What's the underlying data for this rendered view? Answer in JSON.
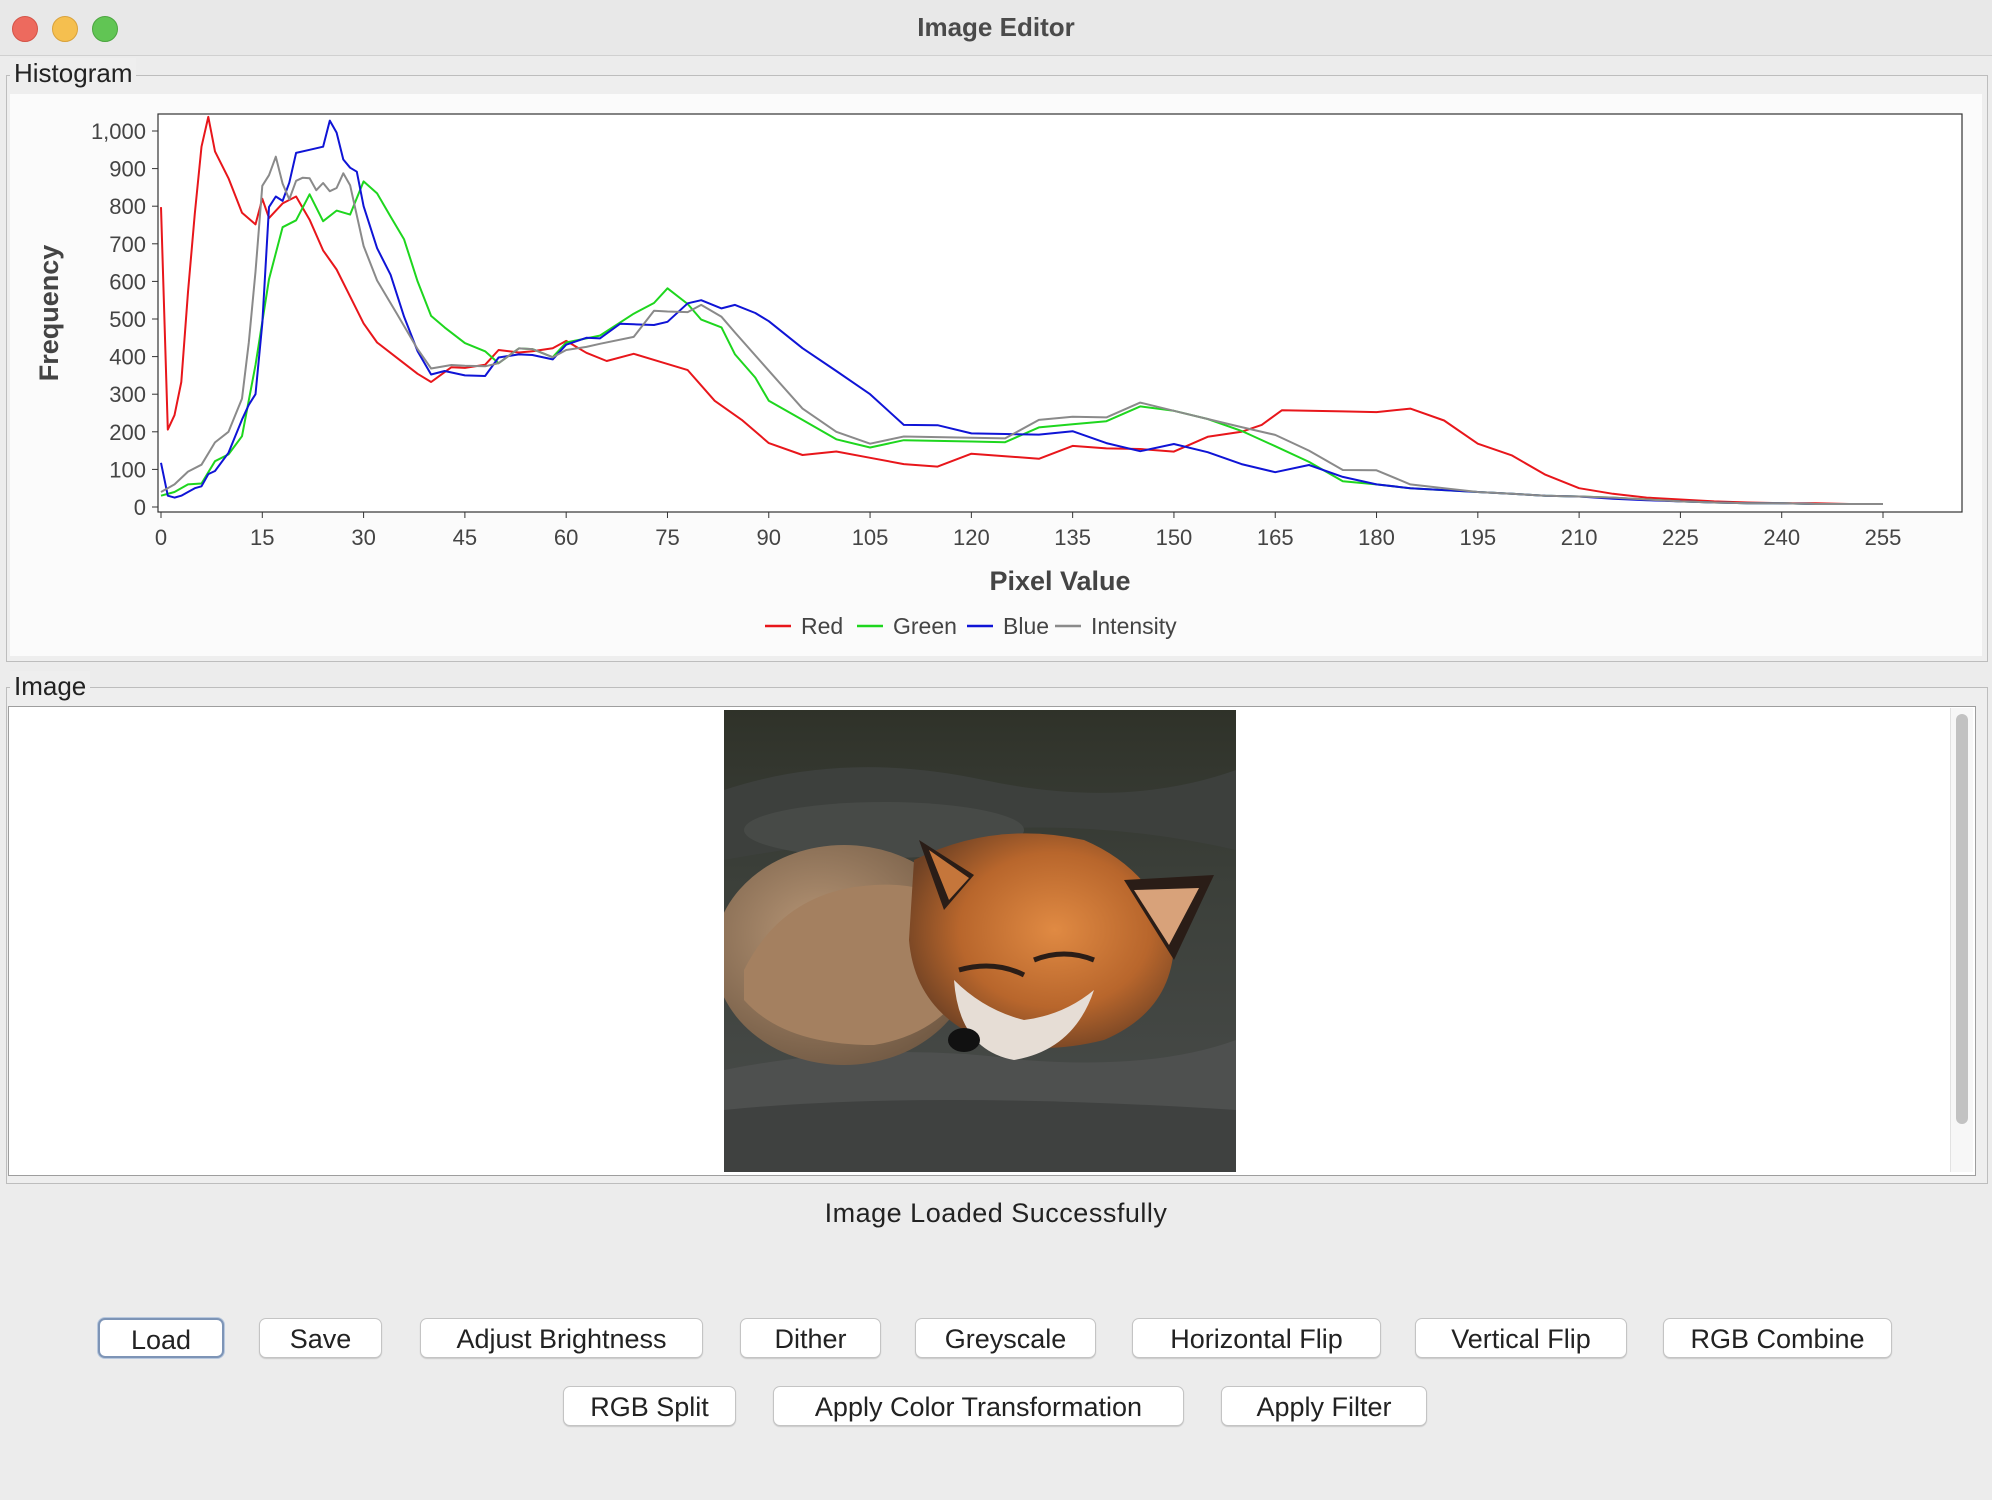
{
  "window": {
    "title": "Image Editor"
  },
  "histogram_panel": {
    "label": "Histogram"
  },
  "image_panel": {
    "label": "Image"
  },
  "status": "Image Loaded Successfully",
  "buttons": {
    "load": "Load",
    "save": "Save",
    "adjust_brightness": "Adjust Brightness",
    "dither": "Dither",
    "greyscale": "Greyscale",
    "horizontal_flip": "Horizontal Flip",
    "vertical_flip": "Vertical Flip",
    "rgb_combine": "RGB Combine",
    "rgb_split": "RGB Split",
    "apply_color_transformation": "Apply Color Transformation",
    "apply_filter": "Apply Filter"
  },
  "chart_data": {
    "type": "line",
    "title": "",
    "xlabel": "Pixel Value",
    "ylabel": "Frequency",
    "xlim": [
      0,
      268
    ],
    "ylim": [
      0,
      1080
    ],
    "x_ticks": [
      0,
      15,
      30,
      45,
      60,
      75,
      90,
      105,
      120,
      135,
      150,
      165,
      180,
      195,
      210,
      225,
      240,
      255
    ],
    "y_ticks": [
      0,
      100,
      200,
      300,
      400,
      500,
      600,
      700,
      800,
      900,
      1000
    ],
    "y_tick_labels": [
      "0",
      "100",
      "200",
      "300",
      "400",
      "500",
      "600",
      "700",
      "800",
      "900",
      "1,000"
    ],
    "grid": false,
    "legend_position": "bottom-center",
    "series": [
      {
        "name": "Red",
        "color": "#e8161b",
        "x": [
          0,
          1,
          2,
          3,
          4,
          5,
          6,
          7,
          8,
          10,
          12,
          14,
          15,
          16,
          18,
          20,
          22,
          24,
          26,
          28,
          30,
          32,
          35,
          38,
          40,
          43,
          45,
          48,
          50,
          53,
          55,
          58,
          60,
          63,
          66,
          70,
          74,
          78,
          82,
          86,
          90,
          95,
          100,
          105,
          110,
          115,
          120,
          125,
          130,
          135,
          140,
          145,
          150,
          155,
          160,
          163,
          166,
          170,
          175,
          180,
          185,
          190,
          195,
          200,
          205,
          210,
          215,
          220,
          225,
          230,
          235,
          240,
          245,
          250,
          255
        ],
        "y": [
          780,
          200,
          250,
          350,
          560,
          780,
          970,
          1020,
          940,
          880,
          800,
          740,
          820,
          780,
          790,
          820,
          770,
          700,
          620,
          560,
          500,
          420,
          390,
          360,
          350,
          360,
          370,
          390,
          400,
          405,
          420,
          440,
          430,
          410,
          400,
          390,
          380,
          370,
          300,
          220,
          170,
          150,
          130,
          125,
          120,
          125,
          130,
          135,
          140,
          145,
          150,
          160,
          165,
          175,
          200,
          230,
          240,
          250,
          260,
          270,
          250,
          230,
          180,
          120,
          80,
          50,
          35,
          25,
          20,
          15,
          12,
          10,
          10,
          8,
          8
        ]
      },
      {
        "name": "Green",
        "color": "#1ed61e",
        "x": [
          0,
          2,
          4,
          6,
          8,
          10,
          12,
          14,
          16,
          18,
          20,
          22,
          24,
          26,
          28,
          30,
          32,
          34,
          36,
          38,
          40,
          42,
          45,
          48,
          50,
          53,
          55,
          58,
          60,
          65,
          70,
          73,
          75,
          78,
          80,
          83,
          85,
          88,
          90,
          95,
          100,
          105,
          110,
          115,
          120,
          125,
          130,
          135,
          140,
          145,
          150,
          155,
          160,
          165,
          170,
          175,
          180,
          185,
          190,
          195,
          200,
          205,
          210,
          215,
          220,
          225,
          230,
          235,
          240,
          245,
          250,
          255
        ],
        "y": [
          30,
          40,
          60,
          80,
          110,
          140,
          200,
          360,
          600,
          750,
          780,
          820,
          760,
          800,
          760,
          860,
          840,
          790,
          700,
          600,
          520,
          460,
          430,
          420,
          400,
          410,
          420,
          410,
          420,
          450,
          520,
          560,
          570,
          540,
          510,
          460,
          400,
          350,
          300,
          220,
          180,
          170,
          160,
          170,
          180,
          190,
          200,
          220,
          240,
          250,
          250,
          240,
          220,
          150,
          120,
          80,
          60,
          50,
          45,
          40,
          35,
          30,
          28,
          25,
          20,
          15,
          12,
          10,
          10,
          8,
          8,
          8
        ]
      },
      {
        "name": "Blue",
        "color": "#0f14d6",
        "x": [
          0,
          1,
          2,
          3,
          4,
          5,
          6,
          7,
          8,
          10,
          12,
          13,
          14,
          15,
          16,
          17,
          18,
          19,
          20,
          22,
          24,
          25,
          26,
          27,
          28,
          29,
          30,
          32,
          34,
          36,
          38,
          40,
          42,
          45,
          48,
          50,
          53,
          55,
          58,
          60,
          63,
          65,
          68,
          70,
          73,
          75,
          78,
          80,
          83,
          85,
          88,
          90,
          95,
          100,
          105,
          110,
          115,
          120,
          125,
          130,
          135,
          140,
          145,
          150,
          155,
          160,
          165,
          170,
          175,
          180,
          185,
          190,
          195,
          200,
          205,
          210,
          215,
          220,
          225,
          230,
          235,
          240,
          245,
          250,
          255
        ],
        "y": [
          100,
          30,
          25,
          30,
          40,
          50,
          55,
          70,
          90,
          150,
          250,
          260,
          300,
          500,
          780,
          820,
          820,
          880,
          930,
          950,
          970,
          1010,
          990,
          930,
          920,
          880,
          800,
          700,
          600,
          500,
          420,
          370,
          350,
          350,
          360,
          380,
          400,
          410,
          410,
          420,
          450,
          460,
          470,
          480,
          490,
          510,
          530,
          550,
          540,
          520,
          510,
          500,
          440,
          350,
          300,
          230,
          200,
          190,
          200,
          210,
          190,
          170,
          160,
          150,
          140,
          120,
          110,
          100,
          80,
          60,
          50,
          45,
          40,
          35,
          30,
          28,
          22,
          18,
          15,
          12,
          10,
          10,
          8,
          8,
          8
        ]
      },
      {
        "name": "Intensity",
        "color": "#8a8a8a",
        "x": [
          0,
          2,
          4,
          6,
          8,
          10,
          12,
          13,
          14,
          15,
          16,
          17,
          18,
          19,
          20,
          21,
          22,
          23,
          24,
          25,
          26,
          27,
          28,
          30,
          32,
          35,
          38,
          40,
          43,
          45,
          48,
          50,
          53,
          55,
          58,
          60,
          63,
          65,
          70,
          73,
          75,
          78,
          80,
          83,
          85,
          90,
          95,
          100,
          105,
          110,
          115,
          120,
          125,
          130,
          135,
          140,
          145,
          150,
          155,
          160,
          165,
          170,
          175,
          180,
          185,
          190,
          195,
          200,
          205,
          210,
          215,
          220,
          225,
          230,
          235,
          240,
          245,
          250,
          255
        ],
        "y": [
          40,
          60,
          100,
          130,
          160,
          200,
          300,
          420,
          620,
          860,
          900,
          920,
          860,
          830,
          850,
          870,
          880,
          860,
          850,
          840,
          860,
          870,
          850,
          700,
          620,
          500,
          420,
          380,
          360,
          370,
          380,
          400,
          410,
          420,
          410,
          400,
          420,
          440,
          470,
          510,
          520,
          530,
          520,
          500,
          470,
          380,
          250,
          200,
          180,
          170,
          180,
          190,
          200,
          220,
          240,
          250,
          260,
          250,
          240,
          230,
          180,
          150,
          110,
          80,
          60,
          50,
          40,
          35,
          30,
          28,
          25,
          20,
          15,
          12,
          10,
          10,
          8,
          8,
          8
        ]
      }
    ]
  }
}
